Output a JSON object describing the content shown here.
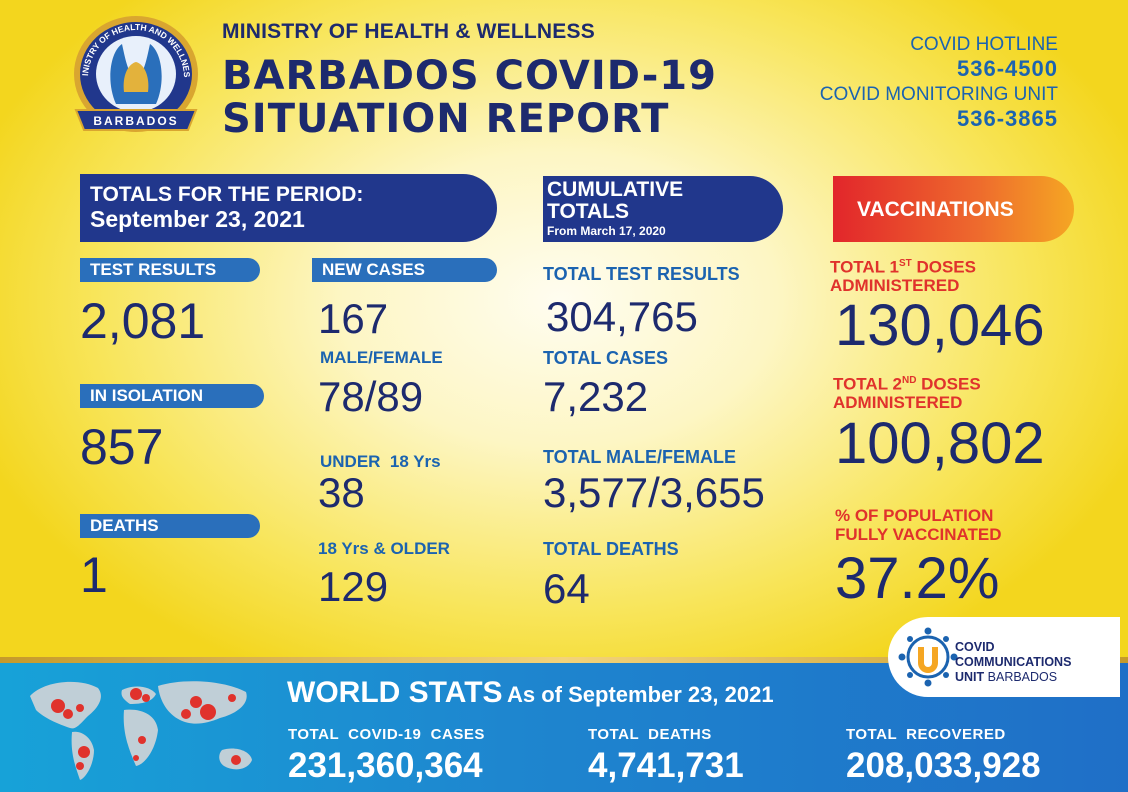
{
  "header": {
    "logo_text_top": "MINISTRY OF HEALTH AND WELLNESS",
    "logo_text_bottom": "BARBADOS",
    "ministry": "MINISTRY OF HEALTH & WELLNESS",
    "title_line1": "BARBADOS COVID-19",
    "title_line2": "SITUATION REPORT",
    "hotline_label": "COVID HOTLINE",
    "hotline_number": "536-4500",
    "monitoring_label": "COVID MONITORING UNIT",
    "monitoring_number": "536-3865"
  },
  "period": {
    "banner_line1": "TOTALS FOR THE PERIOD:",
    "banner_line2": "September 23, 2021",
    "test_results_label": "TEST RESULTS",
    "test_results_value": "2,081",
    "isolation_label": "IN ISOLATION",
    "isolation_value": "857",
    "deaths_label": "DEATHS",
    "deaths_value": "1",
    "new_cases_label": "NEW CASES",
    "new_cases_value": "167",
    "male_female_label": "MALE/FEMALE",
    "male_female_value": "78/89",
    "under18_label": "UNDER  18 Yrs",
    "under18_value": "38",
    "over18_label": "18 Yrs & OLDER",
    "over18_value": "129"
  },
  "cumulative": {
    "banner_line1": "CUMULATIVE",
    "banner_line2": "TOTALS",
    "banner_line3": "From March 17, 2020",
    "tests_label": "TOTAL TEST RESULTS",
    "tests_value": "304,765",
    "cases_label": "TOTAL CASES",
    "cases_value": "7,232",
    "mf_label": "TOTAL MALE/FEMALE",
    "mf_value": "3,577/3,655",
    "deaths_label": "TOTAL DEATHS",
    "deaths_value": "64"
  },
  "vaccinations": {
    "banner": "VACCINATIONS",
    "first_pre": "TOTAL 1",
    "first_sup": "ST",
    "first_post": " DOSES",
    "first_line2": "ADMINISTERED",
    "first_value": "130,046",
    "second_pre": "TOTAL 2",
    "second_sup": "ND",
    "second_post": " DOSES",
    "second_line2": "ADMINISTERED",
    "second_value": "100,802",
    "pct_line1": "% OF POPULATION",
    "pct_line2": "FULLY VACCINATED",
    "pct_value": "37.2%"
  },
  "ccu": {
    "line1": "COVID",
    "line2": "COMMUNICATIONS",
    "line3_bold": "UNIT",
    "line3_rest": " BARBADOS"
  },
  "world": {
    "title": "WORLD STATS",
    "subtitle": "As of September 23, 2021",
    "cases_label": "TOTAL  COVID-19  CASES",
    "cases_value": "231,360,364",
    "deaths_label": "TOTAL  DEATHS",
    "deaths_value": "4,741,731",
    "recovered_label": "TOTAL  RECOVERED",
    "recovered_value": "208,033,928"
  },
  "colors": {
    "navy": "#1d2a6e",
    "blue": "#1b63b0",
    "red": "#e0322c",
    "banner": "#21378c"
  }
}
